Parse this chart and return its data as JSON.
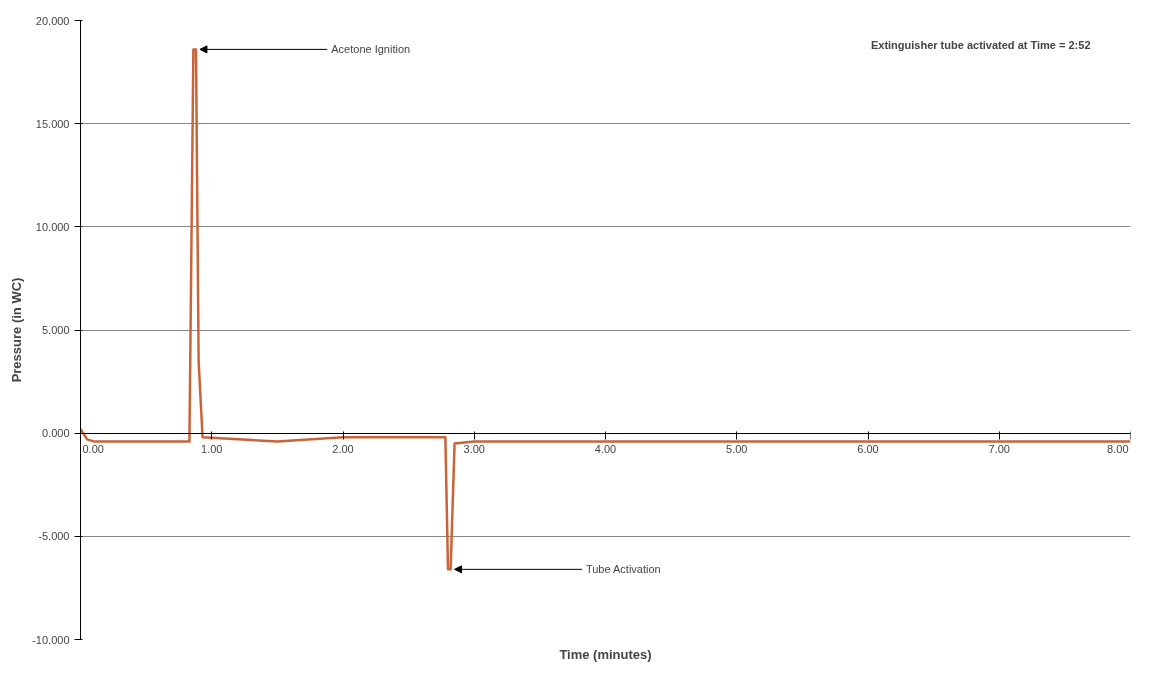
{
  "chart_data": {
    "type": "line",
    "xlabel": "Time (minutes)",
    "ylabel": "Pressure (in WC)",
    "x": [
      0,
      0.05,
      0.1,
      0.5,
      0.83,
      0.86,
      0.88,
      0.9,
      0.93,
      1.2,
      1.5,
      2.0,
      2.5,
      2.78,
      2.8,
      2.82,
      2.85,
      3.0,
      5.0,
      8.0
    ],
    "series": [
      {
        "color": "#c8643a",
        "values": [
          0.2,
          -0.3,
          -0.4,
          -0.4,
          -0.4,
          18.6,
          18.6,
          3.5,
          -0.2,
          -0.3,
          -0.4,
          -0.2,
          -0.2,
          -0.2,
          -6.6,
          -6.6,
          -0.5,
          -0.4,
          -0.4,
          -0.4
        ]
      }
    ],
    "xlim": [
      0,
      8
    ],
    "ylim": [
      -10,
      20
    ],
    "xticks": [
      {
        "value": 0,
        "label": "0.00"
      },
      {
        "value": 1,
        "label": "1.00"
      },
      {
        "value": 2,
        "label": "2.00"
      },
      {
        "value": 3,
        "label": "3.00"
      },
      {
        "value": 4,
        "label": "4.00"
      },
      {
        "value": 5,
        "label": "5.00"
      },
      {
        "value": 6,
        "label": "6.00"
      },
      {
        "value": 7,
        "label": "7.00"
      },
      {
        "value": 8,
        "label": "8.00"
      }
    ],
    "yticks": [
      {
        "value": -10,
        "label": "-10.000"
      },
      {
        "value": -5,
        "label": "-5.000"
      },
      {
        "value": 0,
        "label": "0.000"
      },
      {
        "value": 5,
        "label": "5.000"
      },
      {
        "value": 10,
        "label": "10.000"
      },
      {
        "value": 15,
        "label": "15.000"
      },
      {
        "value": 20,
        "label": "20.000"
      }
    ],
    "grid": "y",
    "marker": "none",
    "line_style": "solid",
    "annotations": [
      {
        "text": "Acetone Ignition",
        "x": 0.88,
        "y": 18.6
      },
      {
        "text": "Tube Activation",
        "x": 2.82,
        "y": -6.6
      },
      "Extinguisher tube activated at Time = 2:52"
    ]
  }
}
